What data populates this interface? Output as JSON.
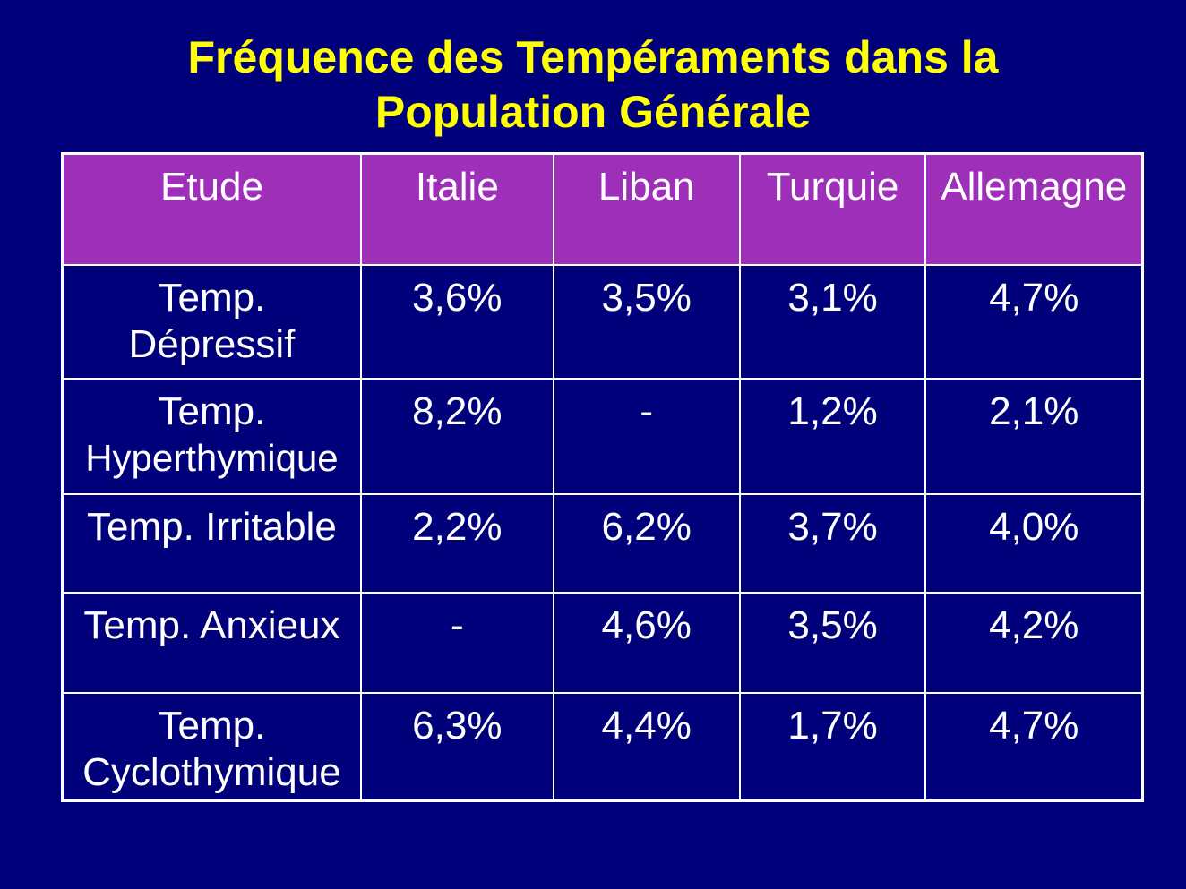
{
  "slide": {
    "title_line1": "Fréquence des Tempéraments dans la",
    "title_line2": "Population Générale"
  },
  "table": {
    "headers": [
      "Etude",
      "Italie",
      "Liban",
      "Turquie",
      "Allemagne"
    ],
    "rows": [
      {
        "label_line1": "Temp.",
        "label_line2": "Dépressif",
        "values": [
          "3,6%",
          "3,5%",
          "3,1%",
          "4,7%"
        ]
      },
      {
        "label_line1": "Temp.",
        "label_line2": "Hyperthymique",
        "values": [
          "8,2%",
          "-",
          "1,2%",
          "2,1%"
        ]
      },
      {
        "label_line1": "Temp. Irritable",
        "label_line2": "",
        "values": [
          "2,2%",
          "6,2%",
          "3,7%",
          "4,0%"
        ]
      },
      {
        "label_line1": "Temp. Anxieux",
        "label_line2": "",
        "values": [
          "-",
          "4,6%",
          "3,5%",
          "4,2%"
        ]
      },
      {
        "label_line1": "Temp.",
        "label_line2": "Cyclothymique",
        "values": [
          "6,3%",
          "4,4%",
          "1,7%",
          "4,7%"
        ]
      }
    ]
  },
  "colors": {
    "background": "#00007a",
    "title": "#ffff00",
    "header_fill": "#9e2fb8",
    "text": "#ffffff",
    "border": "#ffffff"
  }
}
